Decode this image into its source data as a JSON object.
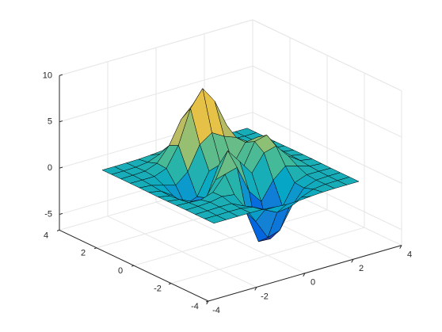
{
  "chart_data": {
    "type": "surface",
    "x": [
      -3,
      -2.5,
      -2,
      -1.5,
      -1,
      -0.5,
      0,
      0.5,
      1,
      1.5,
      2,
      2.5,
      3
    ],
    "y": [
      -3,
      -2.5,
      -2,
      -1.5,
      -1,
      -0.5,
      0,
      0.5,
      1,
      1.5,
      2,
      2.5,
      3
    ],
    "z": [
      [
        0,
        0,
        0,
        0,
        -0.03,
        -0.14,
        -0.24,
        -0.22,
        -0.11,
        -0.03,
        0,
        0,
        0
      ],
      [
        0,
        0,
        0.01,
        0,
        -0.23,
        -0.91,
        -1.57,
        -1.41,
        -0.69,
        -0.18,
        -0.03,
        0,
        0
      ],
      [
        0,
        0.01,
        0.05,
        0.04,
        -0.59,
        -2.64,
        -4.76,
        -4.35,
        -2.1,
        -0.53,
        -0.06,
        0,
        0
      ],
      [
        0,
        0.01,
        0.08,
        0.33,
        0.15,
        -2.19,
        -5.68,
        -5.76,
        -2.64,
        -0.44,
        0.04,
        0.03,
        0
      ],
      [
        -0.01,
        -0.06,
        -0.13,
        0.3,
        1.86,
        2.22,
        -0.72,
        -2.22,
        -0.27,
        0.88,
        0.5,
        0.11,
        0.01
      ],
      [
        -0.03,
        -0.2,
        -0.8,
        -1.21,
        0.8,
        3.55,
        2,
        0.39,
        2.2,
        2.56,
        1.12,
        0.24,
        0.03
      ],
      [
        -0.04,
        -0.3,
        -1.33,
        -2.77,
        -1.65,
        1.48,
        0.98,
        0.37,
        2.94,
        3.27,
        1.41,
        0.3,
        0.03
      ],
      [
        -0.03,
        -0.25,
        -1.12,
        -2.49,
        -2,
        0.39,
        0.46,
        0.38,
        2.38,
        2.56,
        1.09,
        0.23,
        0.03
      ],
      [
        -0.01,
        -0.11,
        -0.48,
        -0.86,
        0.23,
        2.79,
        3.69,
        2.93,
        2.43,
        1.58,
        0.58,
        0.11,
        0.01
      ],
      [
        0,
        -0.02,
        -0.01,
        0.48,
        2.61,
        6.2,
        8,
        6.25,
        3.25,
        1.19,
        0.29,
        0.05,
        0
      ],
      [
        0,
        0.01,
        0.08,
        0.55,
        2.1,
        4.56,
        5.86,
        4.57,
        2.21,
        0.68,
        0.13,
        0.02,
        0
      ],
      [
        0,
        0,
        0.03,
        0.19,
        0.69,
        1.47,
        1.88,
        1.47,
        0.7,
        0.2,
        0.04,
        0,
        0
      ],
      [
        0,
        0,
        0.01,
        0.03,
        0.11,
        0.23,
        0.3,
        0.23,
        0.11,
        0.03,
        0.01,
        0,
        0
      ]
    ],
    "xlim": [
      -4,
      4
    ],
    "ylim": [
      -4,
      4
    ],
    "zlim": [
      -6.7,
      10
    ],
    "xticks": [
      -4,
      -2,
      0,
      2,
      4
    ],
    "yticks": [
      -4,
      -2,
      0,
      2,
      4
    ],
    "zticks": [
      -5,
      0,
      5,
      10
    ],
    "grid": true,
    "edge_color": "#000000",
    "colormap": [
      "#352a87",
      "#0363e1",
      "#1485d4",
      "#06a7c6",
      "#38b99e",
      "#92bf73",
      "#d9ba56",
      "#fcce2e",
      "#f9fb0e"
    ]
  }
}
